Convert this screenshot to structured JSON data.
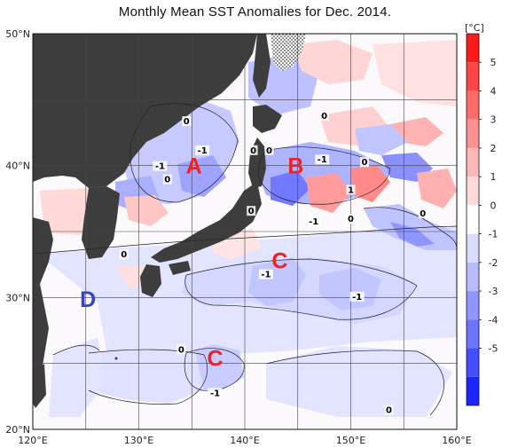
{
  "title": "Monthly Mean SST Anomalies for Dec. 2014.",
  "axes": {
    "lon_ticks": [
      {
        "value": 120,
        "label": "120°E"
      },
      {
        "value": 130,
        "label": "130°E"
      },
      {
        "value": 140,
        "label": "140°E"
      },
      {
        "value": 150,
        "label": "150°E"
      },
      {
        "value": 160,
        "label": "160°E"
      }
    ],
    "lat_ticks": [
      {
        "value": 20,
        "label": "20°N"
      },
      {
        "value": 30,
        "label": "30°N"
      },
      {
        "value": 40,
        "label": "40°N"
      },
      {
        "value": 50,
        "label": "50°N"
      }
    ],
    "lon_range": [
      120,
      160
    ],
    "lat_range": [
      20,
      50
    ]
  },
  "colorbar": {
    "unit": "[°C]",
    "ticks": [
      "5",
      "4",
      "3",
      "2",
      "1",
      "0",
      "-1",
      "-2",
      "-3",
      "-4",
      "-5"
    ],
    "colors": [
      "#ff1a1a",
      "#ff4545",
      "#ff6b6b",
      "#ff9090",
      "#ffb8b8",
      "#ffdada",
      "#ffffff",
      "#dadcff",
      "#b8bcff",
      "#9096ff",
      "#6b73ff",
      "#454eff",
      "#1a26ff"
    ]
  },
  "region_labels": [
    {
      "text": "A",
      "lon": 135.2,
      "lat": 40.0,
      "color": "#ee2222"
    },
    {
      "text": "B",
      "lon": 144.8,
      "lat": 40.0,
      "color": "#ee2222"
    },
    {
      "text": "C",
      "lon": 143.3,
      "lat": 32.8,
      "color": "#ee2222"
    },
    {
      "text": "C",
      "lon": 137.2,
      "lat": 25.4,
      "color": "#ee2222"
    },
    {
      "text": "D",
      "lon": 125.2,
      "lat": 29.9,
      "color": "#3344cc"
    }
  ],
  "contour_labels": [
    {
      "text": "0",
      "lon": 134.5,
      "lat": 43.2
    },
    {
      "text": "-1",
      "lon": 136.0,
      "lat": 41.0
    },
    {
      "text": "-1",
      "lon": 132.0,
      "lat": 39.8
    },
    {
      "text": "0",
      "lon": 132.7,
      "lat": 38.8
    },
    {
      "text": "0",
      "lon": 140.8,
      "lat": 41.0
    },
    {
      "text": "0",
      "lon": 142.3,
      "lat": 41.0
    },
    {
      "text": "0",
      "lon": 147.5,
      "lat": 43.6
    },
    {
      "text": "-1",
      "lon": 147.3,
      "lat": 40.3
    },
    {
      "text": "0",
      "lon": 151.3,
      "lat": 40.1
    },
    {
      "text": "1",
      "lon": 150.0,
      "lat": 38.0
    },
    {
      "text": "0",
      "lon": 140.6,
      "lat": 36.4
    },
    {
      "text": "-1",
      "lon": 146.5,
      "lat": 35.6
    },
    {
      "text": "0",
      "lon": 150.0,
      "lat": 35.8
    },
    {
      "text": "0",
      "lon": 156.8,
      "lat": 36.2
    },
    {
      "text": "0",
      "lon": 128.6,
      "lat": 33.1
    },
    {
      "text": "-1",
      "lon": 142.0,
      "lat": 31.6
    },
    {
      "text": "-1",
      "lon": 150.6,
      "lat": 29.9
    },
    {
      "text": "0",
      "lon": 134.0,
      "lat": 25.9
    },
    {
      "text": "-1",
      "lon": 137.2,
      "lat": 22.6
    },
    {
      "text": "0",
      "lon": 153.6,
      "lat": 21.3
    }
  ],
  "legend_note": ""
}
